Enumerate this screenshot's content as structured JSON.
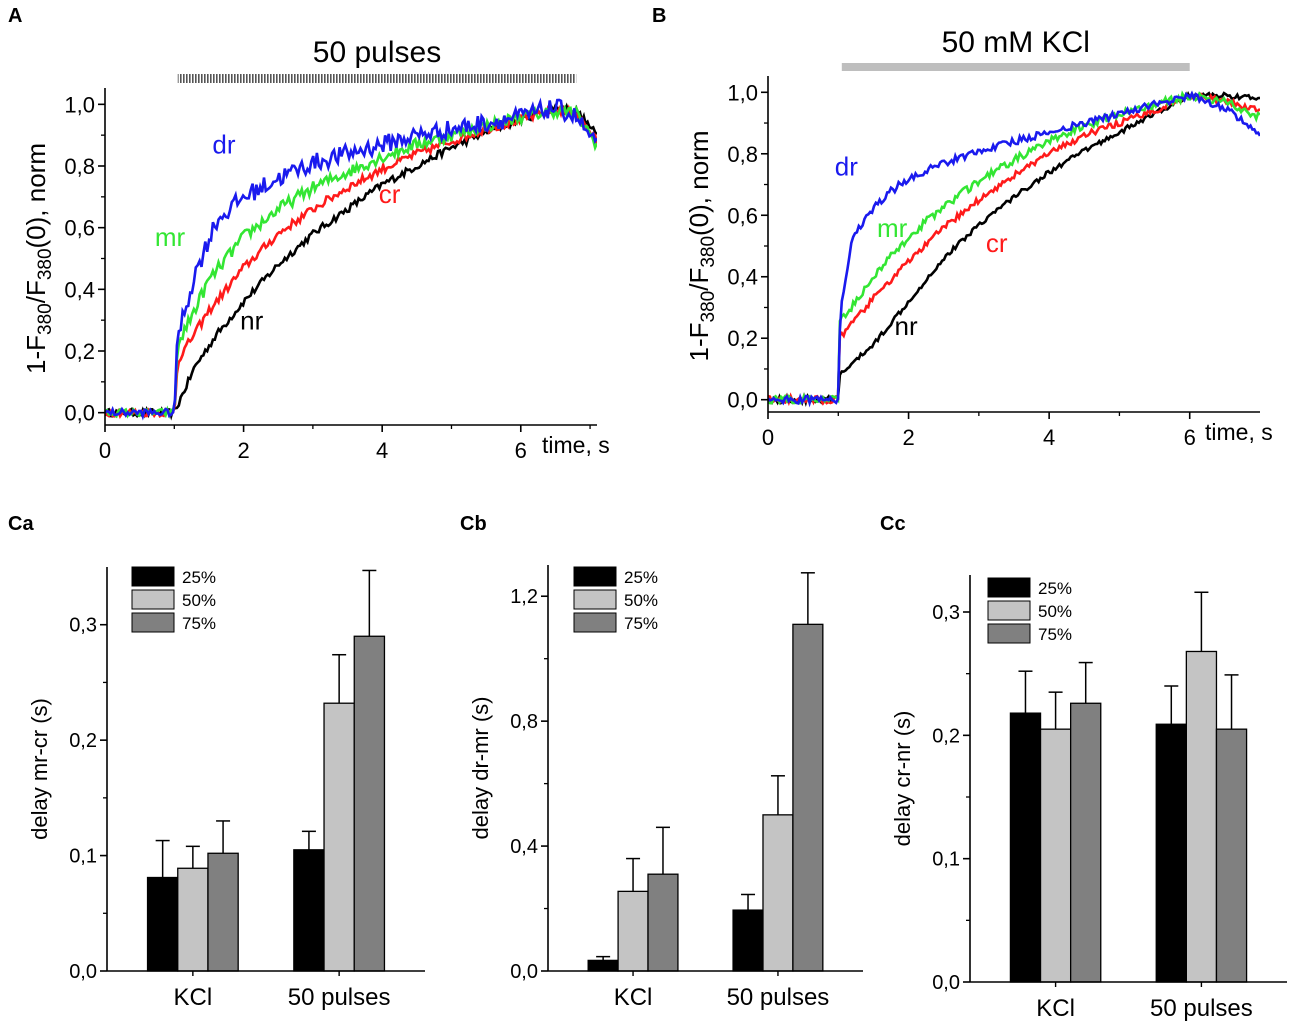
{
  "colors": {
    "nr": "#000000",
    "cr": "#ff1a1a",
    "mr": "#33e633",
    "dr": "#1a1aee",
    "bar_25": "#000000",
    "bar_50": "#c4c4c4",
    "bar_75": "#808080",
    "kcl_bar": "#bebebe"
  },
  "chart_data": [
    {
      "panel": "A",
      "type": "line",
      "stimulus_label": "50 pulses",
      "stimulus_range": [
        1.05,
        6.8
      ],
      "xlabel": "time, s",
      "ylabel": {
        "prefix": "1-F",
        "sub1": "380",
        "mid": "/F",
        "sub2": "380",
        "suffix": "(0), norm"
      },
      "xlim": [
        0,
        7.1
      ],
      "ylim": [
        -0.04,
        1.04
      ],
      "xticks": [
        0,
        2,
        4,
        6
      ],
      "xtick_labels": [
        "0",
        "2",
        "4",
        "6"
      ],
      "yticks": [
        0,
        0.2,
        0.4,
        0.6,
        0.8,
        1.0
      ],
      "ytick_labels": [
        "0,0",
        "0,2",
        "0,4",
        "0,6",
        "0,8",
        "1,0"
      ],
      "onset": 1.0,
      "series": [
        {
          "name": "nr",
          "color_key": "nr",
          "steady": [
            [
              0,
              0
            ],
            [
              1,
              0
            ],
            [
              1.3,
              0.15
            ],
            [
              1.6,
              0.25
            ],
            [
              2,
              0.36
            ],
            [
              2.5,
              0.48
            ],
            [
              3,
              0.58
            ],
            [
              3.5,
              0.66
            ],
            [
              4,
              0.74
            ],
            [
              4.5,
              0.8
            ],
            [
              5,
              0.86
            ],
            [
              5.5,
              0.91
            ],
            [
              6,
              0.95
            ],
            [
              6.5,
              0.99
            ],
            [
              6.8,
              0.98
            ],
            [
              7.1,
              0.9
            ]
          ],
          "noise": 0.012
        },
        {
          "name": "cr",
          "color_key": "cr",
          "steady": [
            [
              0,
              0
            ],
            [
              1,
              0
            ],
            [
              1.05,
              0.17
            ],
            [
              1.5,
              0.33
            ],
            [
              2,
              0.47
            ],
            [
              2.5,
              0.58
            ],
            [
              3,
              0.66
            ],
            [
              3.5,
              0.73
            ],
            [
              4,
              0.79
            ],
            [
              4.5,
              0.84
            ],
            [
              5,
              0.88
            ],
            [
              5.5,
              0.92
            ],
            [
              6,
              0.95
            ],
            [
              6.5,
              0.98
            ],
            [
              6.8,
              0.97
            ],
            [
              7.1,
              0.88
            ]
          ],
          "noise": 0.014
        },
        {
          "name": "mr",
          "color_key": "mr",
          "steady": [
            [
              0,
              0
            ],
            [
              1,
              0
            ],
            [
              1.05,
              0.22
            ],
            [
              1.5,
              0.43
            ],
            [
              2,
              0.57
            ],
            [
              2.5,
              0.66
            ],
            [
              3,
              0.73
            ],
            [
              3.5,
              0.78
            ],
            [
              4,
              0.83
            ],
            [
              4.5,
              0.87
            ],
            [
              5,
              0.9
            ],
            [
              5.5,
              0.93
            ],
            [
              6,
              0.96
            ],
            [
              6.5,
              0.98
            ],
            [
              6.8,
              0.97
            ],
            [
              7.1,
              0.87
            ]
          ],
          "noise": 0.02
        },
        {
          "name": "dr",
          "color_key": "dr",
          "steady": [
            [
              0,
              0
            ],
            [
              1,
              0
            ],
            [
              1.05,
              0.25
            ],
            [
              1.3,
              0.45
            ],
            [
              1.6,
              0.62
            ],
            [
              2,
              0.7
            ],
            [
              2.5,
              0.76
            ],
            [
              3,
              0.81
            ],
            [
              3.5,
              0.84
            ],
            [
              4,
              0.87
            ],
            [
              4.5,
              0.9
            ],
            [
              5,
              0.92
            ],
            [
              5.5,
              0.94
            ],
            [
              6,
              0.96
            ],
            [
              6.5,
              0.99
            ],
            [
              6.8,
              0.96
            ],
            [
              7.1,
              0.86
            ]
          ],
          "noise": 0.03
        }
      ],
      "annotations": [
        {
          "text": "dr",
          "x": 1.55,
          "y": 0.84,
          "color_key": "dr"
        },
        {
          "text": "cr",
          "x": 3.95,
          "y": 0.68,
          "color_key": "cr"
        },
        {
          "text": "mr",
          "x": 0.72,
          "y": 0.54,
          "color_key": "mr"
        },
        {
          "text": "nr",
          "x": 1.95,
          "y": 0.27,
          "color_key": "nr"
        }
      ]
    },
    {
      "panel": "B",
      "type": "line",
      "stimulus_label": "50 mM KCl",
      "stimulus_range": [
        1.05,
        6.0
      ],
      "xlabel": "time, s",
      "ylabel": {
        "prefix": "1-F",
        "sub1": "380",
        "mid": "/F",
        "sub2": "380",
        "suffix": "(0), norm"
      },
      "xlim": [
        0,
        7.0
      ],
      "ylim": [
        -0.04,
        1.04
      ],
      "xticks": [
        0,
        2,
        4,
        6
      ],
      "xtick_labels": [
        "0",
        "2",
        "4",
        "6"
      ],
      "yticks": [
        0,
        0.2,
        0.4,
        0.6,
        0.8,
        1.0
      ],
      "ytick_labels": [
        "0,0",
        "0,2",
        "0,4",
        "0,6",
        "0,8",
        "1,0"
      ],
      "onset": 1.0,
      "series": [
        {
          "name": "nr",
          "color_key": "nr",
          "steady": [
            [
              0,
              0
            ],
            [
              1,
              0
            ],
            [
              1.02,
              0.08
            ],
            [
              1.5,
              0.18
            ],
            [
              2,
              0.32
            ],
            [
              2.5,
              0.46
            ],
            [
              3,
              0.57
            ],
            [
              3.5,
              0.66
            ],
            [
              4,
              0.74
            ],
            [
              4.5,
              0.81
            ],
            [
              5,
              0.87
            ],
            [
              5.5,
              0.93
            ],
            [
              6,
              0.99
            ],
            [
              6.5,
              0.99
            ],
            [
              7,
              0.98
            ]
          ],
          "noise": 0.008
        },
        {
          "name": "cr",
          "color_key": "cr",
          "steady": [
            [
              0,
              0
            ],
            [
              1,
              0
            ],
            [
              1.02,
              0.2
            ],
            [
              1.5,
              0.33
            ],
            [
              2,
              0.45
            ],
            [
              2.5,
              0.56
            ],
            [
              3,
              0.65
            ],
            [
              3.5,
              0.73
            ],
            [
              4,
              0.8
            ],
            [
              4.5,
              0.86
            ],
            [
              5,
              0.9
            ],
            [
              5.5,
              0.94
            ],
            [
              6,
              0.99
            ],
            [
              6.5,
              0.97
            ],
            [
              7,
              0.94
            ]
          ],
          "noise": 0.01
        },
        {
          "name": "mr",
          "color_key": "mr",
          "steady": [
            [
              0,
              0
            ],
            [
              1,
              0
            ],
            [
              1.02,
              0.25
            ],
            [
              1.5,
              0.4
            ],
            [
              2,
              0.53
            ],
            [
              2.5,
              0.63
            ],
            [
              3,
              0.71
            ],
            [
              3.5,
              0.78
            ],
            [
              4,
              0.84
            ],
            [
              4.5,
              0.89
            ],
            [
              5,
              0.93
            ],
            [
              5.5,
              0.96
            ],
            [
              6,
              0.99
            ],
            [
              6.5,
              0.97
            ],
            [
              7,
              0.92
            ]
          ],
          "noise": 0.013
        },
        {
          "name": "dr",
          "color_key": "dr",
          "steady": [
            [
              0,
              0
            ],
            [
              1,
              0
            ],
            [
              1.03,
              0.3
            ],
            [
              1.2,
              0.52
            ],
            [
              1.4,
              0.6
            ],
            [
              1.7,
              0.67
            ],
            [
              2,
              0.72
            ],
            [
              2.5,
              0.77
            ],
            [
              3,
              0.81
            ],
            [
              3.5,
              0.84
            ],
            [
              4,
              0.87
            ],
            [
              4.5,
              0.9
            ],
            [
              5,
              0.93
            ],
            [
              5.5,
              0.96
            ],
            [
              6,
              0.99
            ],
            [
              6.5,
              0.95
            ],
            [
              7,
              0.86
            ]
          ],
          "noise": 0.012
        }
      ],
      "annotations": [
        {
          "text": "dr",
          "x": 0.95,
          "y": 0.73,
          "color_key": "dr"
        },
        {
          "text": "cr",
          "x": 3.1,
          "y": 0.48,
          "color_key": "cr"
        },
        {
          "text": "mr",
          "x": 1.55,
          "y": 0.53,
          "color_key": "mr"
        },
        {
          "text": "nr",
          "x": 1.8,
          "y": 0.21,
          "color_key": "nr"
        }
      ]
    },
    {
      "panel": "Ca",
      "type": "bar",
      "ylabel": "delay mr-cr (s)",
      "ylim": [
        0,
        0.35
      ],
      "yticks": [
        0,
        0.1,
        0.2,
        0.3
      ],
      "ytick_labels": [
        "0,0",
        "0,1",
        "0,2",
        "0,3"
      ],
      "categories": [
        "KCl",
        "50 pulses"
      ],
      "legend": [
        "25%",
        "50%",
        "75%"
      ],
      "series": [
        {
          "name": "25%",
          "color_key": "bar_25",
          "values": [
            0.081,
            0.105
          ],
          "errors": [
            0.032,
            0.016
          ]
        },
        {
          "name": "50%",
          "color_key": "bar_50",
          "values": [
            0.089,
            0.232
          ],
          "errors": [
            0.019,
            0.042
          ]
        },
        {
          "name": "75%",
          "color_key": "bar_75",
          "values": [
            0.102,
            0.29
          ],
          "errors": [
            0.028,
            0.057
          ]
        }
      ]
    },
    {
      "panel": "Cb",
      "type": "bar",
      "ylabel": "delay dr-mr (s)",
      "ylim": [
        0,
        1.3
      ],
      "yticks": [
        0,
        0.4,
        0.8,
        1.2
      ],
      "ytick_labels": [
        "0,0",
        "0,4",
        "0,8",
        "1,2"
      ],
      "categories": [
        "KCl",
        "50 pulses"
      ],
      "legend": [
        "25%",
        "50%",
        "75%"
      ],
      "series": [
        {
          "name": "25%",
          "color_key": "bar_25",
          "values": [
            0.034,
            0.195
          ],
          "errors": [
            0.012,
            0.05
          ]
        },
        {
          "name": "50%",
          "color_key": "bar_50",
          "values": [
            0.255,
            0.5
          ],
          "errors": [
            0.105,
            0.125
          ]
        },
        {
          "name": "75%",
          "color_key": "bar_75",
          "values": [
            0.31,
            1.11
          ],
          "errors": [
            0.15,
            0.165
          ]
        }
      ]
    },
    {
      "panel": "Cc",
      "type": "bar",
      "ylabel": "delay cr-nr (s)",
      "ylim": [
        0,
        0.33
      ],
      "yticks": [
        0,
        0.1,
        0.2,
        0.3
      ],
      "ytick_labels": [
        "0,0",
        "0,1",
        "0,2",
        "0,3"
      ],
      "categories": [
        "KCl",
        "50 pulses"
      ],
      "legend": [
        "25%",
        "50%",
        "75%"
      ],
      "series": [
        {
          "name": "25%",
          "color_key": "bar_25",
          "values": [
            0.218,
            0.209
          ],
          "errors": [
            0.034,
            0.031
          ]
        },
        {
          "name": "50%",
          "color_key": "bar_50",
          "values": [
            0.205,
            0.268
          ],
          "errors": [
            0.03,
            0.048
          ]
        },
        {
          "name": "75%",
          "color_key": "bar_75",
          "values": [
            0.226,
            0.205
          ],
          "errors": [
            0.033,
            0.044
          ]
        }
      ]
    }
  ]
}
